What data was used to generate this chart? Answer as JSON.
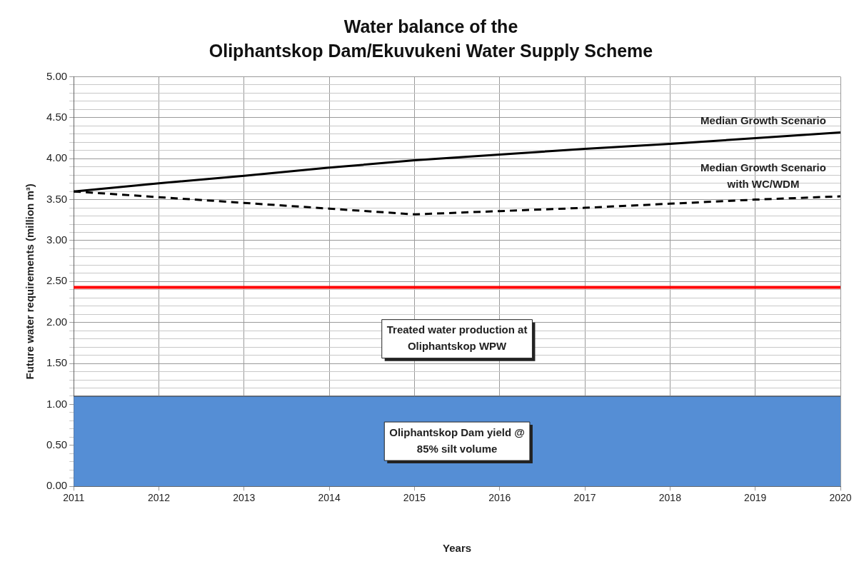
{
  "chart_data": {
    "type": "line",
    "title": "Water balance of the\nOliphantskop Dam/Ekuvukeni Water Supply Scheme",
    "xlabel": "Years",
    "ylabel": "Future water requirements (million m³)",
    "x": [
      2011,
      2012,
      2013,
      2014,
      2015,
      2016,
      2017,
      2018,
      2019,
      2020
    ],
    "series": [
      {
        "type": "area",
        "color": "#558ed5",
        "values": [
          1.1,
          1.1,
          1.1,
          1.1,
          1.1,
          1.1,
          1.1,
          1.1,
          1.1,
          1.1
        ]
      },
      {
        "name": "Median Growth Scenario",
        "color": "#000000",
        "line_style": "solid",
        "values": [
          3.6,
          3.7,
          3.79,
          3.89,
          3.98,
          4.05,
          4.12,
          4.18,
          4.25,
          4.32
        ]
      },
      {
        "name": "Median Growth Scenario with WC/WDM",
        "color": "#000000",
        "line_style": "dashed",
        "values": [
          3.6,
          3.53,
          3.46,
          3.39,
          3.32,
          3.36,
          3.4,
          3.45,
          3.5,
          3.54
        ]
      }
    ],
    "ref_lines": [
      {
        "axis": "y",
        "value": 2.43,
        "color": "#ff0000"
      }
    ],
    "annotations": [
      "Treated water production at Oliphantskop WPW",
      "Oliphantskop Dam yield @ 85% silt volume"
    ],
    "xlim": [
      2011,
      2020
    ],
    "xticks": [
      2011,
      2012,
      2013,
      2014,
      2015,
      2016,
      2017,
      2018,
      2019,
      2020
    ],
    "ylim": [
      0,
      5
    ],
    "yticks": [
      {
        "value": 0,
        "label": "0.00"
      },
      {
        "value": 0.1,
        "label": null
      },
      {
        "value": 0.2,
        "label": null
      },
      {
        "value": 0.3,
        "label": null
      },
      {
        "value": 0.4,
        "label": null
      },
      {
        "value": 0.5,
        "label": "0.50"
      },
      {
        "value": 0.6,
        "label": null
      },
      {
        "value": 0.7,
        "label": null
      },
      {
        "value": 0.8,
        "label": null
      },
      {
        "value": 0.9,
        "label": null
      },
      {
        "value": 1,
        "label": "1.00"
      },
      {
        "value": 1.1,
        "label": null
      },
      {
        "value": 1.2,
        "label": null
      },
      {
        "value": 1.3,
        "label": null
      },
      {
        "value": 1.4,
        "label": null
      },
      {
        "value": 1.5,
        "label": "1.50"
      },
      {
        "value": 1.6,
        "label": null
      },
      {
        "value": 1.7,
        "label": null
      },
      {
        "value": 1.8,
        "label": null
      },
      {
        "value": 1.9,
        "label": null
      },
      {
        "value": 2,
        "label": "2.00"
      },
      {
        "value": 2.1,
        "label": null
      },
      {
        "value": 2.2,
        "label": null
      },
      {
        "value": 2.3,
        "label": null
      },
      {
        "value": 2.4,
        "label": null
      },
      {
        "value": 2.5,
        "label": "2.50"
      },
      {
        "value": 2.6,
        "label": null
      },
      {
        "value": 2.7,
        "label": null
      },
      {
        "value": 2.8,
        "label": null
      },
      {
        "value": 2.9,
        "label": null
      },
      {
        "value": 3,
        "label": "3.00"
      },
      {
        "value": 3.1,
        "label": null
      },
      {
        "value": 3.2,
        "label": null
      },
      {
        "value": 3.3,
        "label": null
      },
      {
        "value": 3.4,
        "label": null
      },
      {
        "value": 3.5,
        "label": "3.50"
      },
      {
        "value": 3.6,
        "label": null
      },
      {
        "value": 3.7,
        "label": null
      },
      {
        "value": 3.8,
        "label": null
      },
      {
        "value": 3.9,
        "label": null
      },
      {
        "value": 4,
        "label": "4.00"
      },
      {
        "value": 4.1,
        "label": null
      },
      {
        "value": 4.2,
        "label": null
      },
      {
        "value": 4.3,
        "label": null
      },
      {
        "value": 4.4,
        "label": null
      },
      {
        "value": 4.5,
        "label": "4.50"
      },
      {
        "value": 4.6,
        "label": null
      },
      {
        "value": 4.7,
        "label": null
      },
      {
        "value": 4.8,
        "label": null
      },
      {
        "value": 4.9,
        "label": null
      },
      {
        "value": 5,
        "label": "5.00"
      }
    ],
    "grid": true,
    "legend": false,
    "marker": "none"
  }
}
